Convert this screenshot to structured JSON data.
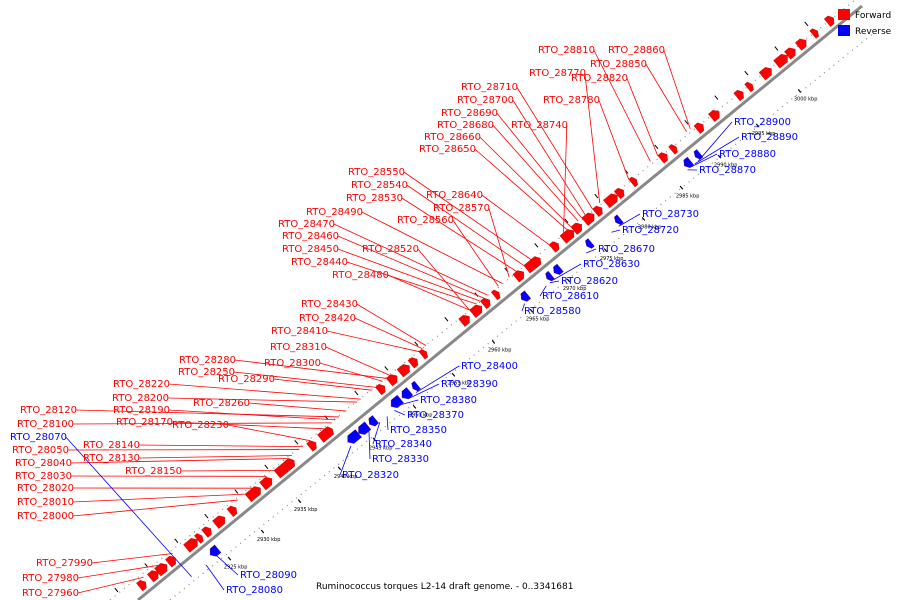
{
  "caption": "Ruminococcus torques L2-14 draft genome. - 0..3341681",
  "legend": [
    {
      "label": "Forward",
      "color": "#ff0000"
    },
    {
      "label": "Reverse",
      "color": "#0000ff"
    }
  ],
  "colors": {
    "forward": "#ff0000",
    "reverse": "#0000ff",
    "backbone": "#888888"
  },
  "scale_labels": [
    "2925 kbp",
    "2930 kbp",
    "2935 kbp",
    "2940 kbp",
    "2945 kbp",
    "2950 kbp",
    "2955 kbp",
    "2960 kbp",
    "2965 kbp",
    "2970 kbp",
    "2975 kbp",
    "2980 kbp",
    "2985 kbp",
    "2990 kbp",
    "2995 kbp",
    "3000 kbp"
  ],
  "forward_labels": [
    "RTO_28810",
    "RTO_28860",
    "RTO_28850",
    "RTO_28770",
    "RTO_28820",
    "RTO_28710",
    "RTO_28780",
    "RTO_28700",
    "RTO_28690",
    "RTO_28680",
    "RTO_28740",
    "RTO_28660",
    "RTO_28650",
    "RTO_28550",
    "RTO_28540",
    "RTO_28640",
    "RTO_28530",
    "RTO_28570",
    "RTO_28490",
    "RTO_28560",
    "RTO_28470",
    "RTO_28460",
    "RTO_28520",
    "RTO_28450",
    "RTO_28440",
    "RTO_28480",
    "RTO_28430",
    "RTO_28420",
    "RTO_28410",
    "RTO_28310",
    "RTO_28280",
    "RTO_28300",
    "RTO_28250",
    "RTO_28290",
    "RTO_28220",
    "RTO_28200",
    "RTO_28260",
    "RTO_28120",
    "RTO_28190",
    "RTO_28100",
    "RTO_28170",
    "RTO_28230",
    "RTO_28140",
    "RTO_28050",
    "RTO_28130",
    "RTO_28040",
    "RTO_28150",
    "RTO_28030",
    "RTO_28020",
    "RTO_28010",
    "RTO_28000",
    "RTO_27990",
    "RTO_27980",
    "RTO_27960"
  ],
  "reverse_labels": [
    "RTO_28900",
    "RTO_28890",
    "RTO_28880",
    "RTO_28870",
    "RTO_28730",
    "RTO_28720",
    "RTO_28670",
    "RTO_28630",
    "RTO_28620",
    "RTO_28610",
    "RTO_28580",
    "RTO_28400",
    "RTO_28390",
    "RTO_28380",
    "RTO_28370",
    "RTO_28350",
    "RTO_28340",
    "RTO_28330",
    "RTO_28320",
    "RTO_28070",
    "RTO_28090",
    "RTO_28080"
  ]
}
